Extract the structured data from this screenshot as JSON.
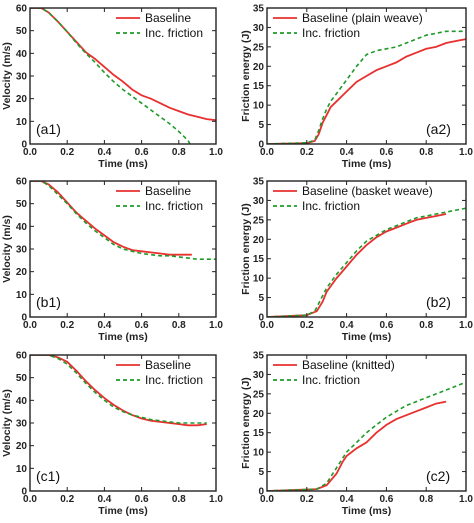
{
  "colors": {
    "baseline": "#e8302f",
    "friction": "#1f9a2a",
    "axis": "#222222"
  },
  "chart_data": [
    {
      "type": "line",
      "panel_label": "(a1)",
      "xlabel": "Time (ms)",
      "ylabel": "Velocity (m/s)",
      "xlim": [
        0,
        1.0
      ],
      "ylim": [
        0,
        60
      ],
      "xticks": [
        "0.0",
        "0.2",
        "0.4",
        "0.6",
        "0.8",
        "1.0"
      ],
      "yticks": [
        "0",
        "10",
        "20",
        "30",
        "40",
        "50",
        "60"
      ],
      "legend": "top-right",
      "series": [
        {
          "name": "Baseline",
          "style": "solid",
          "x": [
            0,
            0.06,
            0.1,
            0.15,
            0.2,
            0.25,
            0.3,
            0.35,
            0.4,
            0.45,
            0.5,
            0.55,
            0.6,
            0.65,
            0.7,
            0.75,
            0.8,
            0.85,
            0.9,
            0.95,
            1.0
          ],
          "y": [
            60,
            60,
            58,
            54,
            49.5,
            45,
            40.5,
            37.5,
            34,
            30.5,
            27.5,
            24,
            21.5,
            20,
            18,
            16,
            14.5,
            13,
            12,
            11,
            10.5
          ]
        },
        {
          "name": "Inc. friction",
          "style": "dashed",
          "x": [
            0,
            0.06,
            0.1,
            0.15,
            0.2,
            0.25,
            0.3,
            0.35,
            0.4,
            0.45,
            0.5,
            0.55,
            0.6,
            0.65,
            0.7,
            0.75,
            0.8,
            0.85,
            0.86
          ],
          "y": [
            60,
            60,
            58,
            54,
            49.5,
            44.5,
            40,
            36,
            31.5,
            27.5,
            24,
            21,
            18,
            15,
            12,
            9,
            5.5,
            1.5,
            0
          ]
        }
      ]
    },
    {
      "type": "line",
      "panel_label": "(a2)",
      "xlabel": "Time (ms)",
      "ylabel": "Friction energy (J)",
      "xlim": [
        0,
        1.0
      ],
      "ylim": [
        0,
        35
      ],
      "xticks": [
        "0.0",
        "0.2",
        "0.4",
        "0.6",
        "0.8",
        "1.0"
      ],
      "yticks": [
        "0",
        "5",
        "10",
        "15",
        "20",
        "25",
        "30",
        "35"
      ],
      "legend": "top-right",
      "series": [
        {
          "name": "Baseline (plain weave)",
          "style": "solid",
          "x": [
            0,
            0.2,
            0.24,
            0.26,
            0.28,
            0.3,
            0.32,
            0.35,
            0.4,
            0.45,
            0.5,
            0.55,
            0.6,
            0.65,
            0.7,
            0.75,
            0.8,
            0.85,
            0.9,
            0.95,
            1.0
          ],
          "y": [
            0,
            0.2,
            0.8,
            2.5,
            5.5,
            7.5,
            9.5,
            11,
            13.5,
            16,
            17.5,
            19,
            20,
            21,
            22.5,
            23.5,
            24.5,
            25,
            26,
            26.5,
            27
          ]
        },
        {
          "name": "Inc. friction",
          "style": "dashed",
          "x": [
            0,
            0.2,
            0.24,
            0.26,
            0.28,
            0.3,
            0.32,
            0.35,
            0.4,
            0.45,
            0.5,
            0.55,
            0.6,
            0.65,
            0.7,
            0.75,
            0.8,
            0.85,
            0.9,
            0.95,
            1.0
          ],
          "y": [
            0,
            0.3,
            1,
            3.5,
            6.5,
            9,
            11,
            13,
            16.5,
            20,
            23,
            24,
            24.5,
            25,
            26,
            27,
            28,
            28.5,
            29,
            29,
            29
          ]
        }
      ]
    },
    {
      "type": "line",
      "panel_label": "(b1)",
      "xlabel": "Time (ms)",
      "ylabel": "Velocity (m/s)",
      "xlim": [
        0,
        1.0
      ],
      "ylim": [
        0,
        60
      ],
      "xticks": [
        "0.0",
        "0.2",
        "0.4",
        "0.6",
        "0.8",
        "1.0"
      ],
      "yticks": [
        "0",
        "10",
        "20",
        "30",
        "40",
        "50",
        "60"
      ],
      "legend": "top-right",
      "series": [
        {
          "name": "Baseline",
          "style": "solid",
          "x": [
            0,
            0.06,
            0.1,
            0.15,
            0.2,
            0.25,
            0.3,
            0.35,
            0.4,
            0.45,
            0.5,
            0.55,
            0.6,
            0.65,
            0.7,
            0.75,
            0.8,
            0.87
          ],
          "y": [
            60,
            60,
            58.5,
            55,
            50.5,
            46,
            42.5,
            39,
            36,
            33,
            31,
            29.5,
            29,
            28.5,
            28,
            27.5,
            27.5,
            27.5
          ]
        },
        {
          "name": "Inc. friction",
          "style": "dashed",
          "x": [
            0,
            0.06,
            0.1,
            0.15,
            0.2,
            0.25,
            0.3,
            0.35,
            0.4,
            0.45,
            0.5,
            0.55,
            0.6,
            0.65,
            0.7,
            0.75,
            0.8,
            0.85,
            0.9,
            0.95,
            1.0
          ],
          "y": [
            60,
            60,
            58,
            54,
            50,
            45.5,
            41.5,
            38,
            35,
            32,
            30,
            29,
            28,
            27.5,
            27,
            27,
            26.5,
            26,
            25.5,
            25.5,
            25.5
          ]
        }
      ]
    },
    {
      "type": "line",
      "panel_label": "(b2)",
      "xlabel": "Time (ms)",
      "ylabel": "Friction energy (J)",
      "xlim": [
        0,
        1.0
      ],
      "ylim": [
        0,
        35
      ],
      "xticks": [
        "0.0",
        "0.2",
        "0.4",
        "0.6",
        "0.8",
        "1.0"
      ],
      "yticks": [
        "0",
        "5",
        "10",
        "15",
        "20",
        "25",
        "30",
        "35"
      ],
      "legend": "top-right",
      "series": [
        {
          "name": "Baseline (basket weave)",
          "style": "solid",
          "x": [
            0,
            0.2,
            0.25,
            0.28,
            0.3,
            0.35,
            0.4,
            0.45,
            0.5,
            0.55,
            0.6,
            0.65,
            0.7,
            0.75,
            0.8,
            0.85,
            0.9
          ],
          "y": [
            0,
            0.5,
            1.5,
            4,
            6.5,
            10,
            13,
            16,
            18.5,
            20.5,
            22,
            23,
            24,
            25,
            25.5,
            26,
            26.5
          ]
        },
        {
          "name": "Inc. friction",
          "style": "dashed",
          "x": [
            0,
            0.2,
            0.24,
            0.27,
            0.3,
            0.35,
            0.4,
            0.45,
            0.5,
            0.55,
            0.6,
            0.65,
            0.7,
            0.75,
            0.8,
            0.85,
            0.9,
            0.95,
            1.0
          ],
          "y": [
            0,
            0.5,
            1.5,
            4.5,
            7.5,
            11,
            14,
            17,
            19.5,
            21,
            22.5,
            23.5,
            24.5,
            25.5,
            26,
            26.5,
            27,
            27.5,
            28
          ]
        }
      ]
    },
    {
      "type": "line",
      "panel_label": "(c1)",
      "xlabel": "Time (ms)",
      "ylabel": "Velocity (m/s)",
      "xlim": [
        0,
        1.0
      ],
      "ylim": [
        0,
        60
      ],
      "xticks": [
        "0.0",
        "0.2",
        "0.4",
        "0.6",
        "0.8",
        "1.0"
      ],
      "yticks": [
        "0",
        "10",
        "20",
        "30",
        "40",
        "50",
        "60"
      ],
      "legend": "top-right",
      "series": [
        {
          "name": "Baseline",
          "style": "solid",
          "x": [
            0,
            0.1,
            0.15,
            0.2,
            0.25,
            0.3,
            0.35,
            0.4,
            0.45,
            0.5,
            0.55,
            0.6,
            0.65,
            0.7,
            0.75,
            0.8,
            0.85,
            0.9,
            0.95
          ],
          "y": [
            60,
            60,
            59,
            57,
            53,
            48.5,
            44.5,
            41,
            38,
            35.5,
            33.5,
            32,
            31,
            30.5,
            30,
            29.5,
            29,
            29,
            29.5
          ]
        },
        {
          "name": "Inc. friction",
          "style": "dashed",
          "x": [
            0,
            0.1,
            0.15,
            0.2,
            0.25,
            0.3,
            0.35,
            0.4,
            0.45,
            0.5,
            0.55,
            0.6,
            0.65,
            0.7,
            0.75,
            0.8,
            0.85,
            0.9,
            0.95
          ],
          "y": [
            60,
            60,
            58.5,
            56,
            52,
            47.5,
            43.5,
            40,
            37,
            35,
            33.5,
            32.5,
            31.5,
            31,
            30.5,
            30,
            30,
            30,
            30
          ]
        }
      ]
    },
    {
      "type": "line",
      "panel_label": "(c2)",
      "xlabel": "Time (ms)",
      "ylabel": "Friction energy (J)",
      "xlim": [
        0,
        1.0
      ],
      "ylim": [
        0,
        35
      ],
      "xticks": [
        "0.0",
        "0.2",
        "0.4",
        "0.6",
        "0.8",
        "1.0"
      ],
      "yticks": [
        "0",
        "5",
        "10",
        "15",
        "20",
        "25",
        "30",
        "35"
      ],
      "legend": "top-right",
      "series": [
        {
          "name": "Baseline (knitted)",
          "style": "solid",
          "x": [
            0,
            0.25,
            0.3,
            0.35,
            0.38,
            0.4,
            0.45,
            0.5,
            0.55,
            0.6,
            0.65,
            0.7,
            0.75,
            0.8,
            0.85,
            0.9
          ],
          "y": [
            0,
            0.5,
            1.5,
            4.5,
            7.5,
            9,
            11,
            12.5,
            15,
            17,
            18.5,
            19.5,
            20.5,
            21.5,
            22.5,
            23
          ]
        },
        {
          "name": "Inc. friction",
          "style": "dashed",
          "x": [
            0,
            0.25,
            0.3,
            0.35,
            0.4,
            0.45,
            0.5,
            0.55,
            0.6,
            0.65,
            0.7,
            0.75,
            0.8,
            0.85,
            0.9,
            0.95,
            1.0
          ],
          "y": [
            0,
            0.5,
            2,
            6,
            10,
            12.5,
            15,
            17,
            19,
            20.5,
            22,
            23,
            24,
            25,
            26,
            27,
            28
          ]
        }
      ]
    }
  ]
}
